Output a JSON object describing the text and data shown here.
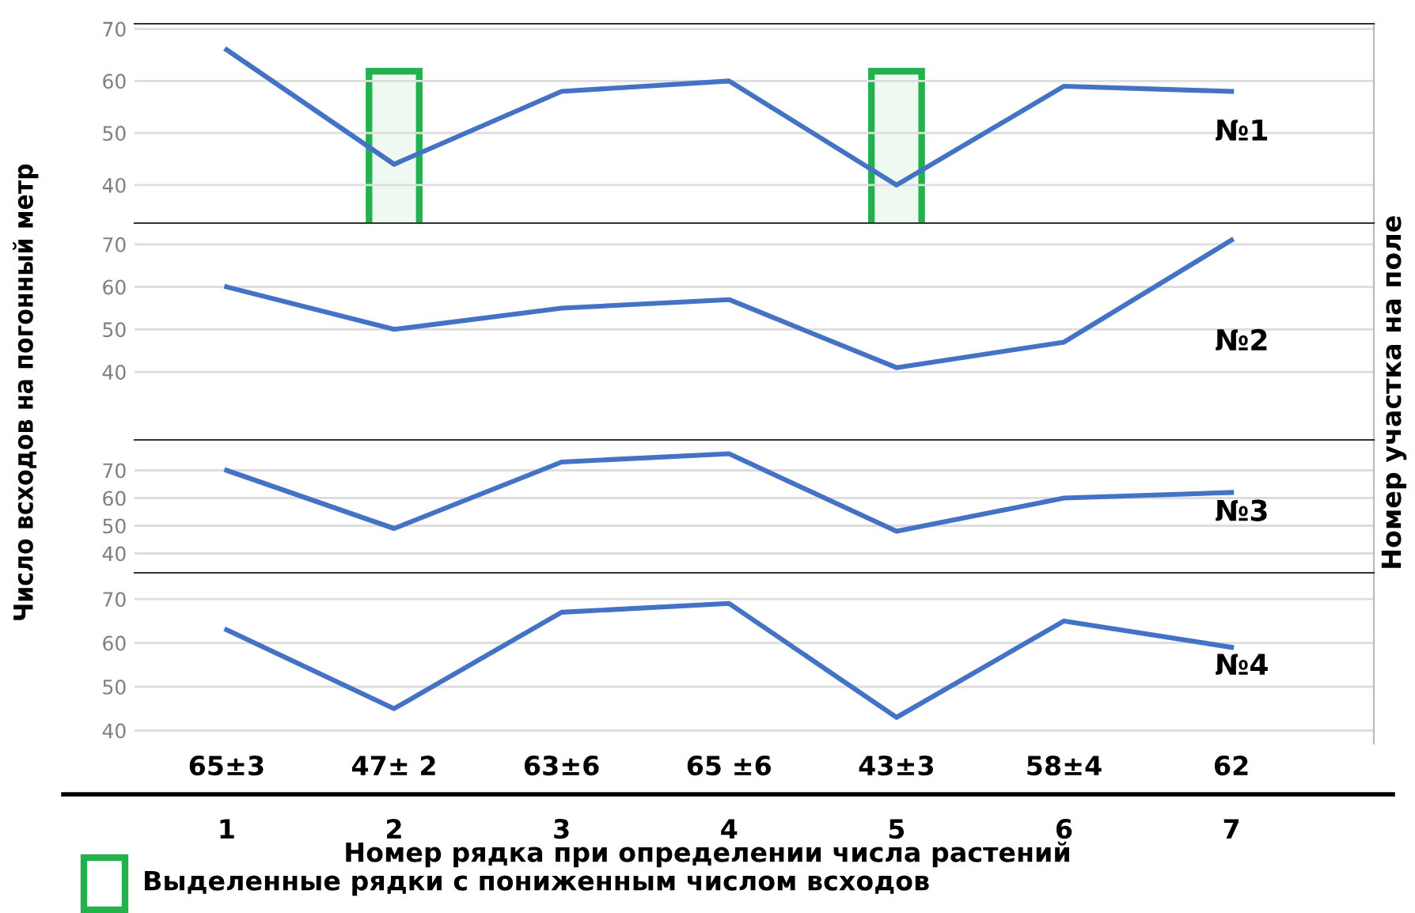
{
  "chart_data": [
    {
      "type": "line",
      "categories": [
        "1",
        "2",
        "3",
        "4",
        "5",
        "6",
        "7"
      ],
      "ylabel": "Число всходов на погонный метр",
      "y2label": "Номер участка на поле",
      "series": [
        {
          "name": "№1",
          "color": "#4472c4",
          "values": [
            66,
            44,
            58,
            60,
            40,
            59,
            58
          ]
        }
      ],
      "ylim": [
        33,
        71
      ],
      "yticks": [
        40,
        50,
        60,
        70
      ],
      "grid": "y",
      "tick_labels": "y",
      "bands": [
        {
          "axis": "x",
          "from": "2",
          "to": "2",
          "color": "#22b14c",
          "label": "Выделенные рядки с пониженным числом всходов"
        },
        {
          "axis": "x",
          "from": "5",
          "to": "5",
          "color": "#22b14c"
        }
      ]
    },
    {
      "type": "line",
      "categories": [
        "1",
        "2",
        "3",
        "4",
        "5",
        "6",
        "7"
      ],
      "series": [
        {
          "name": "№2",
          "color": "#4472c4",
          "values": [
            60,
            50,
            55,
            57,
            41,
            47,
            71
          ]
        }
      ],
      "ylim": [
        24,
        75
      ],
      "yticks": [
        40,
        50,
        60,
        70
      ],
      "grid": "y",
      "tick_labels": "y"
    },
    {
      "type": "line",
      "categories": [
        "1",
        "2",
        "3",
        "4",
        "5",
        "6",
        "7"
      ],
      "series": [
        {
          "name": "№3",
          "color": "#4472c4",
          "values": [
            70,
            49,
            73,
            76,
            48,
            60,
            62
          ]
        }
      ],
      "ylim": [
        33,
        81
      ],
      "yticks": [
        40,
        50,
        60,
        70
      ],
      "grid": "y",
      "tick_labels": "y"
    },
    {
      "type": "line",
      "categories": [
        "1",
        "2",
        "3",
        "4",
        "5",
        "6",
        "7"
      ],
      "xlabel": "Номер рядка при определении числа растений",
      "series": [
        {
          "name": "№4",
          "color": "#4472c4",
          "values": [
            63,
            45,
            67,
            69,
            43,
            65,
            59
          ]
        }
      ],
      "ylim": [
        37,
        76
      ],
      "yticks": [
        40,
        50,
        60,
        70
      ],
      "grid": "y",
      "annotations": [
        "65±3",
        "47± 2",
        "63±6",
        "65 ±6",
        "43±3",
        "58±4",
        "62"
      ]
    }
  ]
}
